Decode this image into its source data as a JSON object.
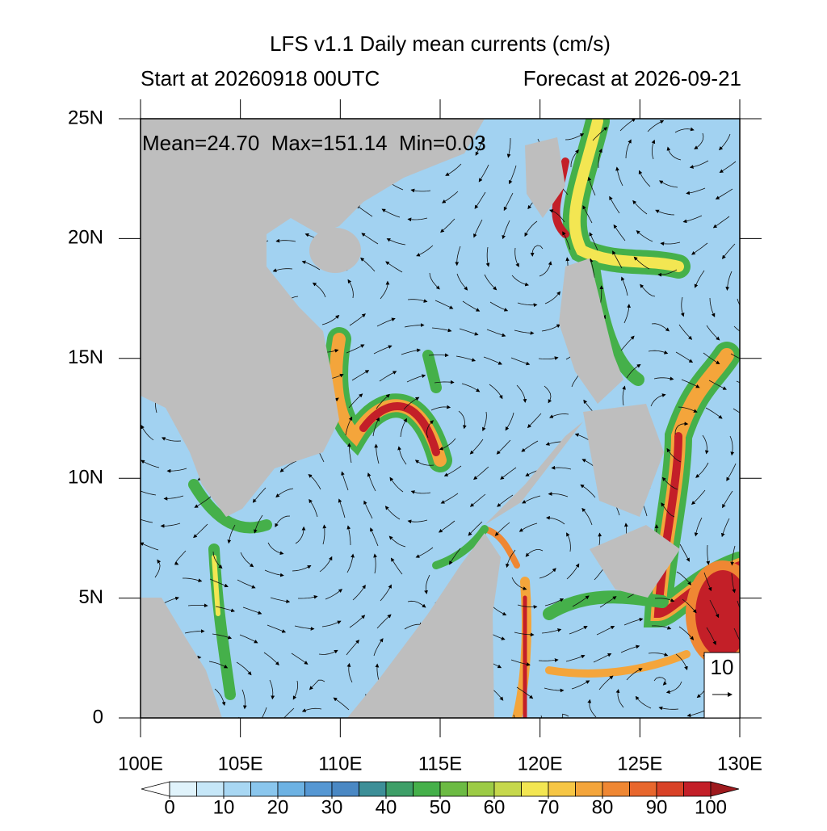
{
  "title": "LFS v1.1 Daily mean currents (cm/s)",
  "subtitle_left": "Start at 20260918 00UTC",
  "subtitle_right": "Forecast at 2026-09-21",
  "annotation": "Mean=24.70  Max=151.14  Min=0.03",
  "xlim": [
    100,
    130
  ],
  "ylim": [
    0,
    25
  ],
  "xticks": [
    {
      "value": 100,
      "label": "100E"
    },
    {
      "value": 105,
      "label": "105E"
    },
    {
      "value": 110,
      "label": "110E"
    },
    {
      "value": 115,
      "label": "115E"
    },
    {
      "value": 120,
      "label": "120E"
    },
    {
      "value": 125,
      "label": "125E"
    },
    {
      "value": 130,
      "label": "130E"
    }
  ],
  "yticks": [
    0,
    {
      "value": 5,
      "label": "5N"
    },
    {
      "value": 10,
      "label": "10N"
    },
    {
      "value": 15,
      "label": "15N"
    },
    {
      "value": 20,
      "label": "20N"
    },
    {
      "value": 25,
      "label": "25N"
    }
  ],
  "colorbar": {
    "clim": [
      0,
      100
    ],
    "ticks": [
      0,
      10,
      20,
      30,
      40,
      50,
      60,
      70,
      80,
      90,
      100
    ],
    "colors": [
      "#e0f3fb",
      "#c6e7f8",
      "#a8d7f3",
      "#8ac6ed",
      "#6db2e3",
      "#5597d3",
      "#4a88c4",
      "#3d8f98",
      "#3e9f68",
      "#45b04a",
      "#6cbb43",
      "#9ccb45",
      "#c6d84c",
      "#f3e652",
      "#f6c645",
      "#f4a53b",
      "#ef8733",
      "#e8672d",
      "#d94227",
      "#c31f28"
    ],
    "under_color": "#ffffff",
    "over_color": "#9e1a1e"
  },
  "reference_vector": {
    "label": "10"
  }
}
